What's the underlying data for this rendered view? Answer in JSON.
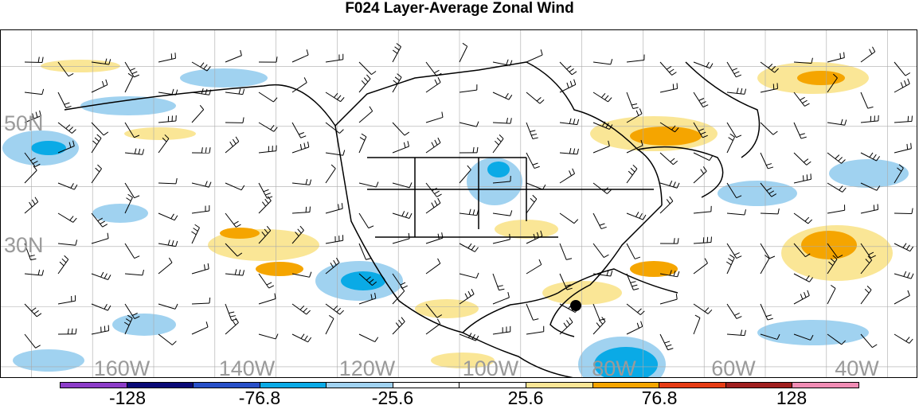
{
  "title": "F024 Layer-Average Zonal Wind",
  "lat_labels": [
    {
      "text": "50N"
    },
    {
      "text": "30N"
    }
  ],
  "lon_labels": [
    "160W",
    "140W",
    "120W",
    "100W",
    "80W",
    "60W",
    "40W"
  ],
  "colorbar": {
    "colors": [
      "#8c3cc8",
      "#0a0a78",
      "#2850c8",
      "#0aaae6",
      "#a0d2f0",
      "#ffffff",
      "#ffffff",
      "#fae696",
      "#f5a500",
      "#e63c14",
      "#a01e1e",
      "#f08cb4"
    ],
    "labels": [
      "-128",
      "-76.8",
      "-25.6",
      "25.6",
      "76.8",
      "128"
    ]
  },
  "map": {
    "extent_lon": [
      -175,
      -25
    ],
    "extent_lat": [
      8,
      66
    ],
    "graticule_lon_step": 10,
    "graticule_lat_step": 10
  }
}
